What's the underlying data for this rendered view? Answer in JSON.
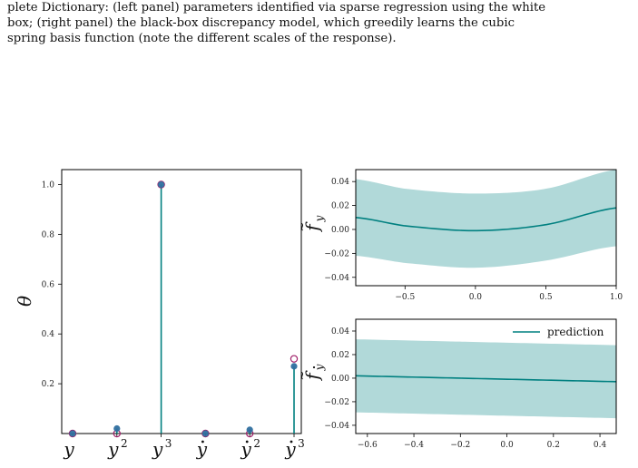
{
  "caption": {
    "line1": "plete Dictionary: (left panel) parameters identified via sparse regression using the white",
    "line2": "box; (right panel) the black-box discrepancy model, which greedily learns the cubic",
    "line3": "spring basis function (note the different scales of the response)."
  },
  "colors": {
    "stem": "#008080",
    "marker_fill": "#2f6f9f",
    "true_marker": "#a0206a",
    "band": "#b1d9d9",
    "line": "#008080"
  },
  "chart_data": [
    {
      "type": "stem",
      "panel": "left",
      "ylabel": "θ",
      "categories": [
        "y",
        "y²",
        "y³",
        "ẏ",
        "ẏ²",
        "ẏ³"
      ],
      "values": [
        0.0,
        0.02,
        1.0,
        0.0,
        0.015,
        0.27
      ],
      "true_values": [
        0.0,
        0.0,
        1.0,
        0.0,
        0.0,
        0.3
      ],
      "ylim": [
        0.0,
        1.06
      ],
      "yticks": [
        "0.2",
        "0.4",
        "0.6",
        "0.8",
        "1.0"
      ],
      "ytick_values": [
        0.2,
        0.4,
        0.6,
        0.8,
        1.0
      ]
    },
    {
      "type": "line",
      "panel": "top-right",
      "ylabel": "f̃y",
      "x": [
        -0.85,
        -0.5,
        0.0,
        0.5,
        1.0
      ],
      "y": [
        0.01,
        0.003,
        -0.001,
        0.004,
        0.018
      ],
      "band_upper": [
        0.042,
        0.034,
        0.03,
        0.034,
        0.05
      ],
      "band_lower": [
        -0.022,
        -0.028,
        -0.032,
        -0.026,
        -0.014
      ],
      "xlim": [
        -0.85,
        1.0
      ],
      "ylim": [
        -0.047,
        0.05
      ],
      "xticks": [
        "−0.5",
        "0.0",
        "0.5",
        "1.0"
      ],
      "xtick_values": [
        -0.5,
        0.0,
        0.5,
        1.0
      ],
      "yticks": [
        "0.04",
        "0.02",
        "0.00",
        "−0.02",
        "−0.04"
      ],
      "ytick_values": [
        0.04,
        0.02,
        0.0,
        -0.02,
        -0.04
      ]
    },
    {
      "type": "line",
      "panel": "bottom-right",
      "ylabel": "f̃ẏ",
      "legend": "prediction",
      "legend_position": "top-right",
      "x": [
        -0.65,
        0.47
      ],
      "y": [
        0.002,
        -0.003
      ],
      "band_upper": [
        0.033,
        0.028
      ],
      "band_lower": [
        -0.029,
        -0.034
      ],
      "xlim": [
        -0.65,
        0.47
      ],
      "ylim": [
        -0.047,
        0.05
      ],
      "xticks": [
        "−0.6",
        "−0.4",
        "−0.2",
        "0.0",
        "0.2",
        "0.4"
      ],
      "xtick_values": [
        -0.6,
        -0.4,
        -0.2,
        0.0,
        0.2,
        0.4
      ],
      "yticks": [
        "0.04",
        "0.02",
        "0.00",
        "−0.02",
        "−0.04"
      ],
      "ytick_values": [
        0.04,
        0.02,
        0.0,
        -0.02,
        -0.04
      ]
    }
  ]
}
